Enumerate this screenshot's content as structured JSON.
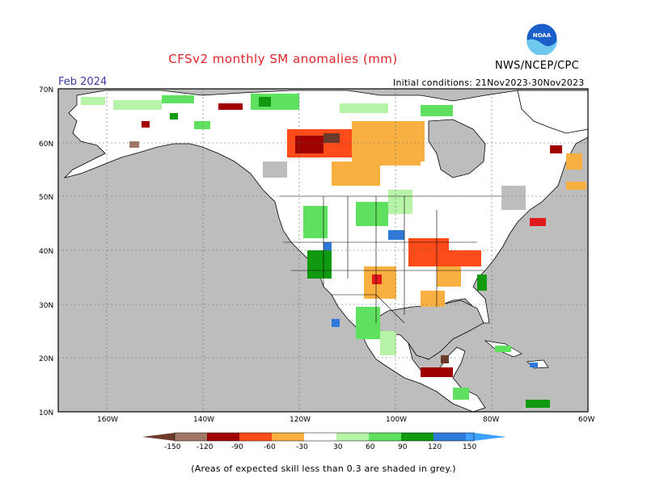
{
  "header": {
    "title": "CFSv2 monthly SM anomalies (mm)",
    "agency": "NWS/NCEP/CPC",
    "month": "Feb 2024",
    "initial_conditions": "Initial conditions: 21Nov2023-30Nov2023",
    "logo_icon": "noaa-logo-icon"
  },
  "footnote": "(Areas of expected skill less than 0.3 are shaded in grey.)",
  "map": {
    "lat_labels": [
      "70N",
      "60N",
      "50N",
      "40N",
      "30N",
      "20N",
      "10N"
    ],
    "lon_labels": [
      "160W",
      "140W",
      "120W",
      "100W",
      "80W",
      "60W"
    ],
    "colors": {
      "ocean": "#bdbdbd",
      "land": "#ffffff",
      "low_skill": "#bdbdbd",
      "grid": "#666666"
    }
  },
  "colorbar": {
    "labels": [
      "-150",
      "-120",
      "-90",
      "-60",
      "-30",
      "30",
      "60",
      "90",
      "120",
      "150"
    ],
    "colors": [
      "#6b3a2a",
      "#a17868",
      "#a00000",
      "#e01a1a",
      "#ff4a1a",
      "#f8b040",
      "#ffffff",
      "#b8f4a8",
      "#5fe05f",
      "#109a10",
      "#2f7ad8",
      "#3ea0ff"
    ]
  }
}
